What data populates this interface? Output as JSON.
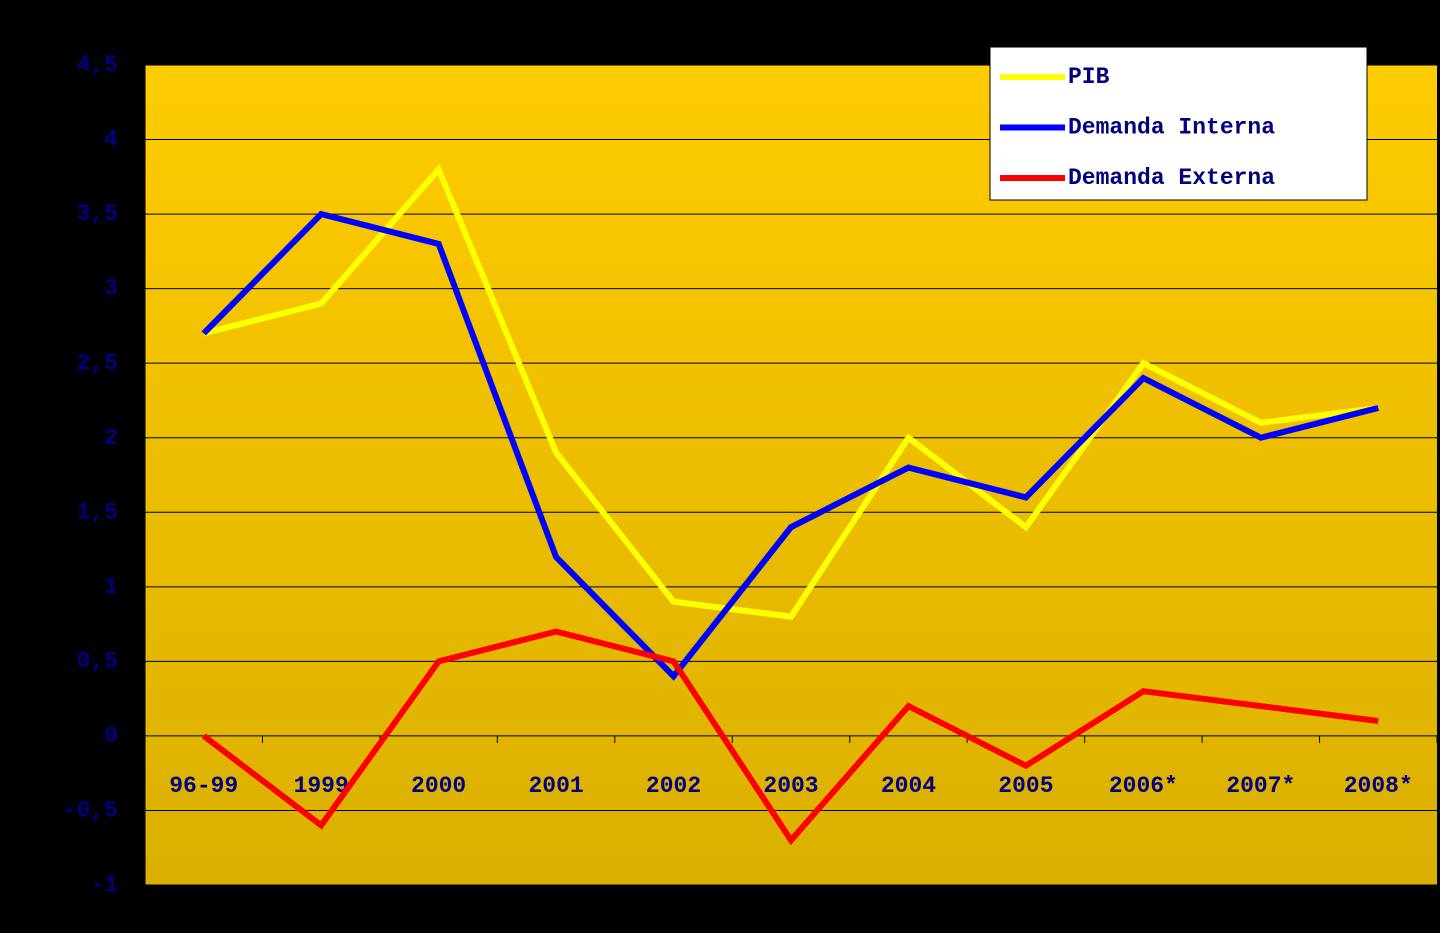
{
  "chart_data": {
    "type": "line",
    "categories": [
      "96-99",
      "1999",
      "2000",
      "2001",
      "2002",
      "2003",
      "2004",
      "2005",
      "2006*",
      "2007*",
      "2008*"
    ],
    "series": [
      {
        "name": "PIB",
        "color": "#ffff00",
        "values": [
          2.7,
          2.9,
          3.8,
          1.9,
          0.9,
          0.8,
          2.0,
          1.4,
          2.5,
          2.1,
          2.2
        ]
      },
      {
        "name": "Demanda Interna",
        "color": "#0000ff",
        "values": [
          2.7,
          3.5,
          3.3,
          1.2,
          0.4,
          1.4,
          1.8,
          1.6,
          2.4,
          2.0,
          2.2
        ]
      },
      {
        "name": "Demanda Externa",
        "color": "#ff0000",
        "values": [
          0,
          -0.6,
          0.5,
          0.7,
          0.5,
          -0.7,
          0.2,
          -0.2,
          0.3,
          0.2,
          0.1
        ]
      }
    ],
    "ylim": [
      -1,
      4.5
    ],
    "yticks": [
      -1,
      {
        "value": -0.5,
        "label": "-0,5"
      },
      0,
      {
        "value": 0.5,
        "label": "0,5"
      },
      1,
      {
        "value": 1.5,
        "label": "1,5"
      },
      2,
      {
        "value": 2.5,
        "label": "2,5"
      },
      3,
      {
        "value": 3.5,
        "label": "3,5"
      },
      4,
      {
        "value": 4.5,
        "label": "4,5"
      }
    ],
    "grid": true,
    "legend": "upper right"
  }
}
